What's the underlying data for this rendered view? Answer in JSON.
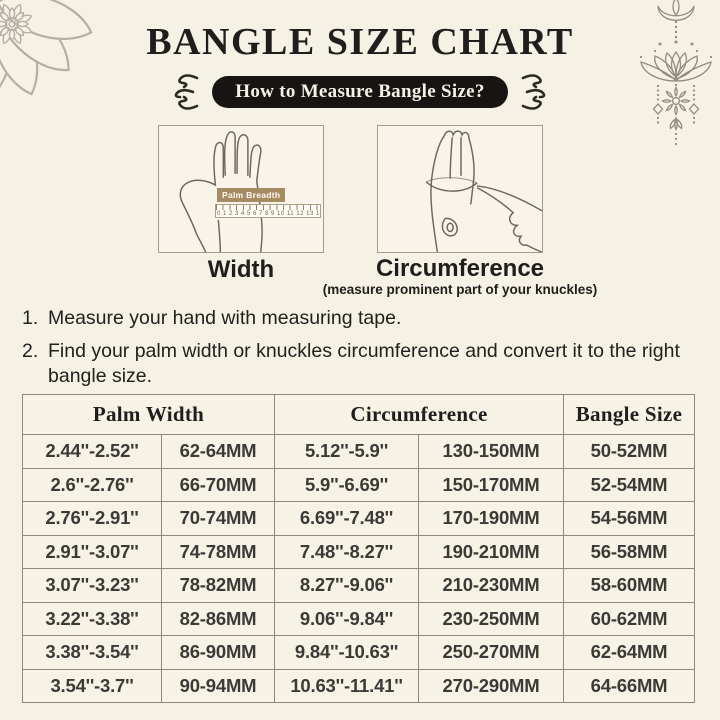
{
  "page": {
    "title": "BANGLE SIZE CHART",
    "banner_label": "How to Measure Bangle Size?"
  },
  "ornaments": {
    "top_left": "mandala-flower-icon",
    "top_right": "lotus-pendant-icon",
    "banner_left": "curly-flourish-icon",
    "banner_right": "curly-flourish-icon"
  },
  "diagrams": {
    "width": {
      "label": "Width",
      "tape_tag": "Palm Breadth",
      "ruler_numbers": "0 1 2 3 4 5 6 7 8 9 10 11 12 13 14",
      "illustration": "hand-with-ruler"
    },
    "circumference": {
      "label": "Circumference",
      "note": "(measure prominent part of your knuckles)",
      "illustration": "hand-knuckle-measure"
    }
  },
  "instructions": [
    {
      "num": "1.",
      "text": "Measure your hand with measuring tape."
    },
    {
      "num": "2.",
      "text": "Find your palm width or knuckles circumference and convert it to the right bangle size."
    }
  ],
  "table": {
    "headers": {
      "palm_width": "Palm Width",
      "circumference": "Circumference",
      "bangle_size": "Bangle Size"
    },
    "rows": [
      [
        "2.44''-2.52''",
        "62-64MM",
        "5.12''-5.9''",
        "130-150MM",
        "50-52MM"
      ],
      [
        "2.6''-2.76''",
        "66-70MM",
        "5.9''-6.69''",
        "150-170MM",
        "52-54MM"
      ],
      [
        "2.76''-2.91''",
        "70-74MM",
        "6.69''-7.48''",
        "170-190MM",
        "54-56MM"
      ],
      [
        "2.91''-3.07''",
        "74-78MM",
        "7.48''-8.27''",
        "190-210MM",
        "56-58MM"
      ],
      [
        "3.07''-3.23''",
        "78-82MM",
        "8.27''-9.06''",
        "210-230MM",
        "58-60MM"
      ],
      [
        "3.22''-3.38''",
        "82-86MM",
        "9.06''-9.84''",
        "230-250MM",
        "60-62MM"
      ],
      [
        "3.38''-3.54''",
        "86-90MM",
        "9.84''-10.63''",
        "250-270MM",
        "62-64MM"
      ],
      [
        "3.54''-3.7''",
        "90-94MM",
        "10.63''-11.41''",
        "270-290MM",
        "64-66MM"
      ]
    ]
  },
  "colors": {
    "background": "#f6f1e5",
    "banner_bg": "#161514",
    "banner_text": "#f6f1e5",
    "text_dark": "#1f1e1c",
    "cell_text": "#3c3a37",
    "table_border": "#8e897d",
    "box_border": "#a39d8e",
    "tape_tan": "#a78c63",
    "line_art": "#70685c",
    "ornament_gray": "#b4b0a5",
    "pendant_gray": "#908c81"
  }
}
